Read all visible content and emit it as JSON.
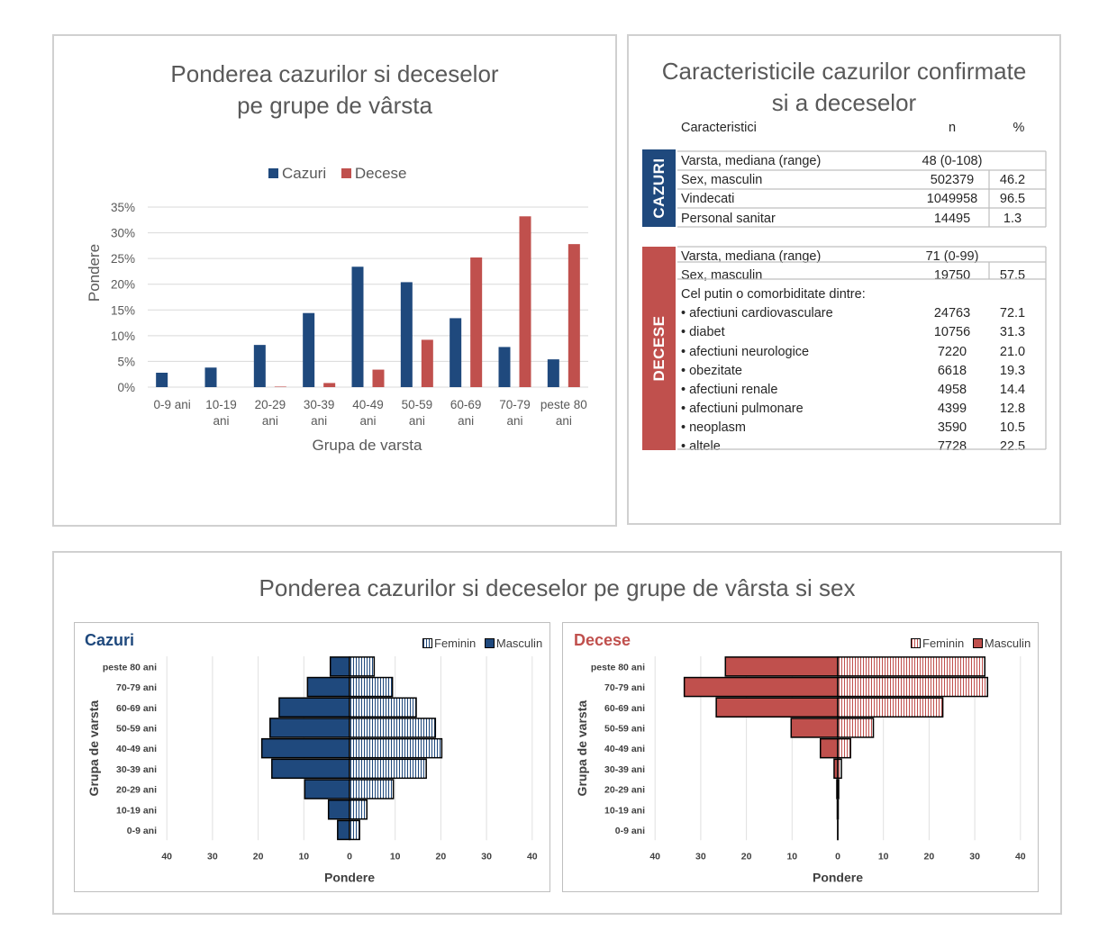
{
  "colors": {
    "cazuri": "#1f497d",
    "decese": "#c0504d",
    "sect_cazuri": "#1f497d",
    "sect_decese": "#c0504d"
  },
  "chart_data": [
    {
      "id": "age-bar",
      "type": "bar",
      "title_line1": "Ponderea cazurilor si deceselor",
      "title_line2": "pe grupe de vârsta",
      "xlabel": "Grupa de varsta",
      "ylabel": "Pondere",
      "ylim": [
        0,
        35
      ],
      "yticks": [
        "0%",
        "5%",
        "10%",
        "15%",
        "20%",
        "25%",
        "30%",
        "35%"
      ],
      "categories": [
        [
          "0-9 ani"
        ],
        [
          "10-19",
          "ani"
        ],
        [
          "20-29",
          "ani"
        ],
        [
          "30-39",
          "ani"
        ],
        [
          "40-49",
          "ani"
        ],
        [
          "50-59",
          "ani"
        ],
        [
          "60-69",
          "ani"
        ],
        [
          "70-79",
          "ani"
        ],
        [
          "peste 80",
          "ani"
        ]
      ],
      "legend": [
        "Cazuri",
        "Decese"
      ],
      "series": [
        {
          "name": "Cazuri",
          "values": [
            2.8,
            3.8,
            8.2,
            14.4,
            23.4,
            20.4,
            13.4,
            7.8,
            5.4
          ]
        },
        {
          "name": "Decese",
          "values": [
            0.0,
            0.0,
            0.1,
            0.8,
            3.4,
            9.2,
            25.2,
            33.2,
            27.8
          ]
        }
      ]
    },
    {
      "id": "pyr-cazuri",
      "type": "bar",
      "orientation": "horizontal-pyramid",
      "title": "Cazuri",
      "xlabel": "Pondere",
      "ylabel": "Grupa de varsta",
      "xlim": [
        -40,
        40
      ],
      "xticks": [
        "40",
        "30",
        "20",
        "10",
        "0",
        "10",
        "20",
        "30",
        "40"
      ],
      "categories": [
        "peste 80 ani",
        "70-79 ani",
        "60-69 ani",
        "50-59 ani",
        "40-49 ani",
        "30-39 ani",
        "20-29 ani",
        "10-19 ani",
        "0-9 ani"
      ],
      "legend": [
        "Feminin",
        "Masculin"
      ],
      "series": [
        {
          "name": "Masculin",
          "values": [
            4.2,
            9.2,
            15.4,
            17.4,
            19.2,
            17.0,
            9.8,
            4.6,
            2.6
          ]
        },
        {
          "name": "Feminin",
          "values": [
            5.4,
            9.4,
            14.6,
            18.8,
            20.2,
            16.8,
            9.6,
            3.8,
            2.2
          ]
        }
      ]
    },
    {
      "id": "pyr-decese",
      "type": "bar",
      "orientation": "horizontal-pyramid",
      "title": "Decese",
      "xlabel": "Pondere",
      "ylabel": "Grupa de varsta",
      "xlim": [
        -40,
        40
      ],
      "xticks": [
        "40",
        "30",
        "20",
        "10",
        "0",
        "10",
        "20",
        "30",
        "40"
      ],
      "categories": [
        "peste 80 ani",
        "70-79 ani",
        "60-69 ani",
        "50-59 ani",
        "40-49 ani",
        "30-39 ani",
        "20-29 ani",
        "10-19 ani",
        "0-9 ani"
      ],
      "legend": [
        "Feminin",
        "Masculin"
      ],
      "series": [
        {
          "name": "Masculin",
          "values": [
            24.6,
            33.6,
            26.6,
            10.2,
            3.8,
            0.8,
            0.2,
            0.1,
            0.0
          ]
        },
        {
          "name": "Feminin",
          "values": [
            32.2,
            32.8,
            23.0,
            7.8,
            2.8,
            0.8,
            0.2,
            0.1,
            0.0
          ]
        }
      ]
    }
  ],
  "table": {
    "title_line1": "Caracteristicile cazurilor confirmate",
    "title_line2": "si a deceselor",
    "headers": {
      "label": "Caracteristici",
      "n": "n",
      "pct": "%"
    },
    "cazuri": {
      "section_label": "CAZURI",
      "rows": [
        {
          "label": "Varsta, mediana (range)",
          "n": "48 (0-108)",
          "pct": ""
        },
        {
          "label": "Sex, masculin",
          "n": "502379",
          "pct": "46.2"
        },
        {
          "label": "Vindecati",
          "n": "1049958",
          "pct": "96.5"
        },
        {
          "label": "Personal sanitar",
          "n": "14495",
          "pct": "1.3"
        }
      ]
    },
    "decese": {
      "section_label": "DECESE",
      "rows": [
        {
          "label": "Varsta, mediana (range)",
          "n": "71 (0-99)",
          "pct": ""
        },
        {
          "label": "Sex, masculin",
          "n": "19750",
          "pct": "57.5"
        },
        {
          "label": "Cel putin o comorbiditate dintre:",
          "n": "",
          "pct": ""
        },
        {
          "label": "• afectiuni cardiovasculare",
          "n": "24763",
          "pct": "72.1"
        },
        {
          "label": "• diabet",
          "n": "10756",
          "pct": "31.3"
        },
        {
          "label": "• afectiuni neurologice",
          "n": "7220",
          "pct": "21.0"
        },
        {
          "label": "• obezitate",
          "n": "6618",
          "pct": "19.3"
        },
        {
          "label": "• afectiuni renale",
          "n": "4958",
          "pct": "14.4"
        },
        {
          "label": "• afectiuni pulmonare",
          "n": "4399",
          "pct": "12.8"
        },
        {
          "label": "• neoplasm",
          "n": "3590",
          "pct": "10.5"
        },
        {
          "label": "• altele",
          "n": "7728",
          "pct": "22.5"
        }
      ]
    }
  },
  "bottom": {
    "title": "Ponderea cazurilor si deceselor pe grupe de vârsta si sex"
  }
}
